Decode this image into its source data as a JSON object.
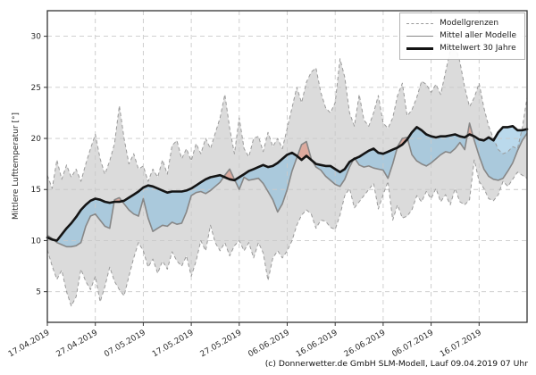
{
  "figure": {
    "caption": "(c) Donnerwetter.de GmbH SLM-Modell, Lauf 09.04.2019 07 Uhr"
  },
  "axes": {
    "y_label": "Mittlere Lufttemperatur [°]",
    "y_ticks": [
      5,
      10,
      15,
      20,
      25,
      30
    ],
    "y_range": [
      2,
      32.5
    ],
    "x_tick_labels": [
      "17.04.2019",
      "27.04.2019",
      "07.05.2019",
      "17.05.2019",
      "27.05.2019",
      "06.06.2019",
      "16.06.2019",
      "26.06.2019",
      "06.07.2019",
      "16.07.2019"
    ],
    "x_tick_days": [
      0,
      10,
      20,
      30,
      40,
      50,
      60,
      70,
      80,
      90
    ],
    "x_range_days": [
      0,
      100
    ]
  },
  "legend": {
    "items": [
      {
        "label": "Modellgrenzen",
        "style": "dashed"
      },
      {
        "label": "Mittel aller Modelle",
        "style": "solid"
      },
      {
        "label": "Mittelwert 30 Jahre",
        "style": "thick"
      }
    ]
  },
  "colors": {
    "band_fill": "rgba(170,170,170,0.42)",
    "below_fill": "rgba(130,185,220,0.55)",
    "above_fill": "rgba(225,110,85,0.45)",
    "bound_line": "#9a9a9a",
    "mean_line": "#878787",
    "climate_line": "#141414",
    "grid": "#c9c9c9",
    "frame": "#333333"
  },
  "chart_data": {
    "type": "line",
    "title": "",
    "xlabel": "",
    "ylabel": "Mittlere Lufttemperatur [°]",
    "x_start_date": "17.04.2019",
    "x_step_days": 1,
    "ylim": [
      2,
      32.5
    ],
    "grid": true,
    "legend_position": "upper right",
    "series": [
      {
        "key": "upper",
        "name": "Modellgrenzen (obere Grenze)",
        "values": [
          16.4,
          15.1,
          17.9,
          16.0,
          17.4,
          16.2,
          17.0,
          15.8,
          17.5,
          19.0,
          20.4,
          18.0,
          16.5,
          17.8,
          19.5,
          23.2,
          20.0,
          17.5,
          18.5,
          17.0,
          17.3,
          15.8,
          17.0,
          16.2,
          17.9,
          16.5,
          19.3,
          19.8,
          18.0,
          19.0,
          17.8,
          19.5,
          18.5,
          20.0,
          19.0,
          20.5,
          22.0,
          24.3,
          21.0,
          18.5,
          22.0,
          19.0,
          18.2,
          20.0,
          20.2,
          18.7,
          20.6,
          19.2,
          20.0,
          19.0,
          21.0,
          23.0,
          25.0,
          23.5,
          25.5,
          26.5,
          26.9,
          24.5,
          23.0,
          22.5,
          23.5,
          27.8,
          26.0,
          22.5,
          21.2,
          24.3,
          21.8,
          21.2,
          22.5,
          24.2,
          21.5,
          21.0,
          22.0,
          24.2,
          25.4,
          22.2,
          22.8,
          24.0,
          25.6,
          25.3,
          24.5,
          25.3,
          24.3,
          26.5,
          28.6,
          29.1,
          27.5,
          25.0,
          23.1,
          24.0,
          25.4,
          23.0,
          21.2,
          20.0,
          18.9,
          18.5,
          18.7,
          19.2,
          19.0,
          21.0,
          24.0
        ]
      },
      {
        "key": "lower",
        "name": "Modellgrenzen (untere Grenze)",
        "values": [
          9.1,
          7.5,
          6.2,
          7.1,
          5.0,
          3.6,
          4.5,
          7.2,
          6.0,
          5.2,
          6.5,
          4.0,
          5.5,
          7.4,
          6.0,
          5.2,
          4.6,
          6.5,
          8.3,
          9.8,
          9.0,
          7.4,
          8.2,
          6.8,
          8.0,
          7.2,
          8.9,
          8.0,
          7.5,
          8.5,
          6.5,
          8.0,
          10.0,
          9.0,
          11.5,
          9.8,
          9.0,
          9.8,
          8.5,
          9.5,
          10.0,
          9.0,
          9.8,
          8.3,
          9.8,
          8.8,
          6.1,
          8.3,
          9.0,
          8.3,
          9.0,
          10.0,
          11.5,
          12.5,
          13.0,
          12.6,
          11.2,
          12.0,
          11.9,
          11.3,
          11.1,
          12.5,
          14.4,
          15.1,
          13.2,
          13.8,
          14.4,
          15.0,
          15.6,
          13.1,
          14.5,
          15.8,
          12.0,
          13.5,
          12.2,
          12.4,
          13.0,
          14.4,
          13.8,
          14.8,
          14.1,
          15.1,
          13.8,
          14.5,
          13.5,
          15.1,
          13.8,
          13.5,
          14.0,
          17.9,
          15.8,
          15.1,
          14.1,
          13.9,
          14.5,
          15.8,
          15.3,
          16.0,
          16.7,
          16.4,
          16.1
        ]
      },
      {
        "key": "mean",
        "name": "Mittel aller Modelle",
        "values": [
          10.5,
          10.2,
          9.8,
          9.6,
          9.4,
          9.4,
          9.5,
          9.8,
          11.4,
          12.4,
          12.6,
          12.0,
          11.4,
          11.2,
          14.0,
          14.2,
          13.6,
          13.0,
          12.6,
          12.4,
          14.1,
          12.2,
          10.9,
          11.2,
          11.5,
          11.4,
          11.8,
          11.6,
          11.7,
          12.8,
          14.4,
          14.7,
          14.8,
          14.6,
          14.9,
          15.3,
          15.7,
          16.4,
          17.0,
          16.0,
          15.0,
          16.2,
          15.9,
          16.0,
          16.1,
          15.6,
          14.8,
          14.0,
          12.8,
          13.6,
          15.0,
          16.8,
          18.1,
          19.4,
          19.7,
          18.0,
          17.2,
          16.9,
          16.3,
          15.9,
          15.5,
          15.3,
          16.0,
          17.2,
          18.1,
          17.4,
          17.2,
          17.3,
          17.1,
          17.0,
          16.9,
          16.1,
          17.5,
          19.2,
          20.0,
          20.1,
          18.4,
          17.8,
          17.5,
          17.3,
          17.6,
          18.0,
          18.4,
          18.7,
          18.6,
          19.0,
          19.6,
          18.9,
          21.5,
          19.8,
          18.3,
          17.0,
          16.3,
          16.0,
          15.9,
          16.1,
          16.8,
          17.6,
          18.8,
          19.8,
          20.5
        ]
      },
      {
        "key": "climate",
        "name": "Mittelwert 30 Jahre",
        "values": [
          10.3,
          10.1,
          10.0,
          10.6,
          11.2,
          11.7,
          12.3,
          13.0,
          13.5,
          13.9,
          14.1,
          14.0,
          13.8,
          13.7,
          13.8,
          13.8,
          13.9,
          14.2,
          14.5,
          14.8,
          15.2,
          15.4,
          15.3,
          15.1,
          14.9,
          14.7,
          14.8,
          14.8,
          14.8,
          14.9,
          15.1,
          15.4,
          15.7,
          16.0,
          16.2,
          16.3,
          16.4,
          16.2,
          16.0,
          15.9,
          16.2,
          16.5,
          16.8,
          17.0,
          17.2,
          17.4,
          17.2,
          17.3,
          17.6,
          18.0,
          18.4,
          18.6,
          18.3,
          17.9,
          18.3,
          17.9,
          17.5,
          17.4,
          17.3,
          17.3,
          17.0,
          16.7,
          17.0,
          17.7,
          18.0,
          18.2,
          18.5,
          18.8,
          19.0,
          18.6,
          18.5,
          18.7,
          18.9,
          19.1,
          19.4,
          19.9,
          20.6,
          21.1,
          20.8,
          20.4,
          20.2,
          20.1,
          20.2,
          20.2,
          20.3,
          20.4,
          20.2,
          20.1,
          20.4,
          20.2,
          19.9,
          19.8,
          20.1,
          19.8,
          20.6,
          21.1,
          21.1,
          21.2,
          20.8,
          20.8,
          20.9
        ]
      }
    ]
  }
}
